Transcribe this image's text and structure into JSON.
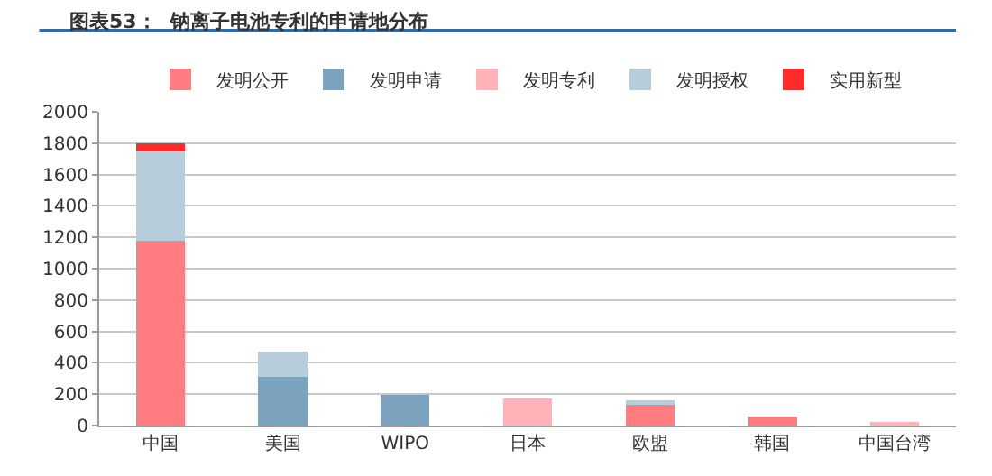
{
  "chart_data": {
    "type": "bar",
    "stacked": true,
    "title": "图表53：  钠离子电池专利的申请地分布",
    "categories": [
      "中国",
      "美国",
      "WIPO",
      "日本",
      "欧盟",
      "韩国",
      "中国台湾"
    ],
    "series": [
      {
        "name": "发明公开",
        "color": "#ff7c80",
        "values": [
          1180,
          null,
          null,
          null,
          130,
          55,
          null
        ]
      },
      {
        "name": "发明申请",
        "color": "#7ba3bd",
        "values": [
          null,
          310,
          195,
          null,
          null,
          null,
          null
        ]
      },
      {
        "name": "发明专利",
        "color": "#ffb3b8",
        "values": [
          null,
          null,
          null,
          175,
          null,
          null,
          15
        ]
      },
      {
        "name": "发明授权",
        "color": "#b7cddb",
        "values": [
          570,
          160,
          null,
          null,
          30,
          null,
          null
        ]
      },
      {
        "name": "实用新型",
        "color": "#ff2a2a",
        "values": [
          50,
          null,
          null,
          null,
          null,
          null,
          null
        ]
      }
    ],
    "ylim": [
      0,
      2000
    ],
    "yticks": [
      0,
      200,
      400,
      600,
      800,
      1000,
      1200,
      1400,
      1600,
      1800,
      2000
    ],
    "grid": "y",
    "legend": "top"
  }
}
